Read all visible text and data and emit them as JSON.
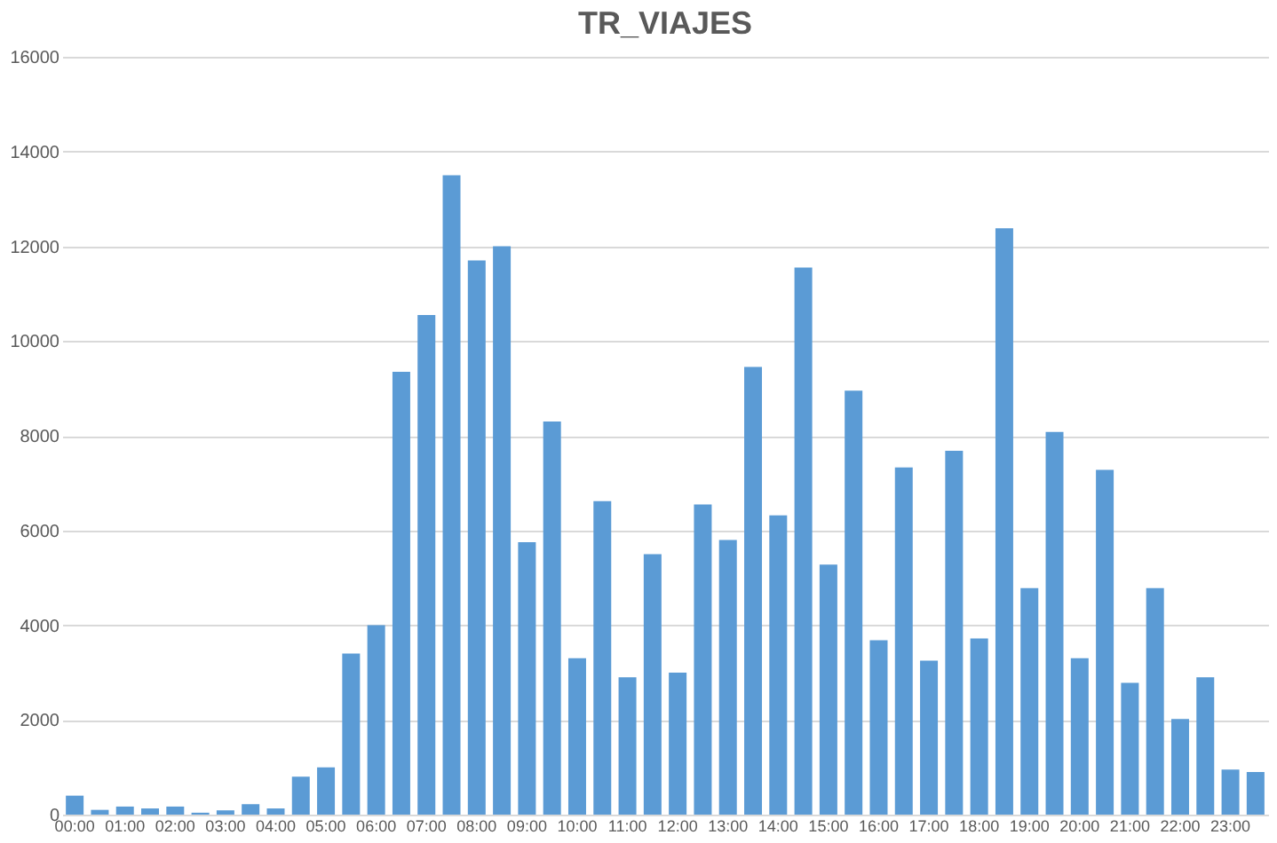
{
  "chart_data": {
    "type": "bar",
    "title": "TR_VIAJES",
    "categories": [
      "00:00",
      null,
      "01:00",
      null,
      "02:00",
      null,
      "03:00",
      null,
      "04:00",
      null,
      "05:00",
      null,
      "06:00",
      null,
      "07:00",
      null,
      "08:00",
      null,
      "09:00",
      null,
      "10:00",
      null,
      "11:00",
      null,
      "12:00",
      null,
      "13:00",
      null,
      "14:00",
      null,
      "15:00",
      null,
      "16:00",
      null,
      "17:00",
      null,
      "18:00",
      null,
      "19:00",
      null,
      "20:00",
      null,
      "21:00",
      null,
      "22:00",
      null,
      "23:00",
      null
    ],
    "values": [
      400,
      100,
      170,
      130,
      170,
      40,
      90,
      220,
      130,
      800,
      1000,
      3400,
      4000,
      9350,
      10550,
      13500,
      11700,
      12000,
      5750,
      8300,
      3300,
      6620,
      2900,
      5500,
      3000,
      6550,
      5800,
      9450,
      6320,
      11550,
      5280,
      8950,
      3680,
      7330,
      3250,
      7680,
      3720,
      12380,
      4780,
      8080,
      3300,
      7280,
      2780,
      4780,
      2020,
      2900,
      950,
      900
    ],
    "color": "#5b9bd5",
    "ylim": [
      0,
      16000
    ],
    "yticks": [
      0,
      2000,
      4000,
      6000,
      8000,
      10000,
      12000,
      14000,
      16000
    ],
    "grid": "y"
  }
}
